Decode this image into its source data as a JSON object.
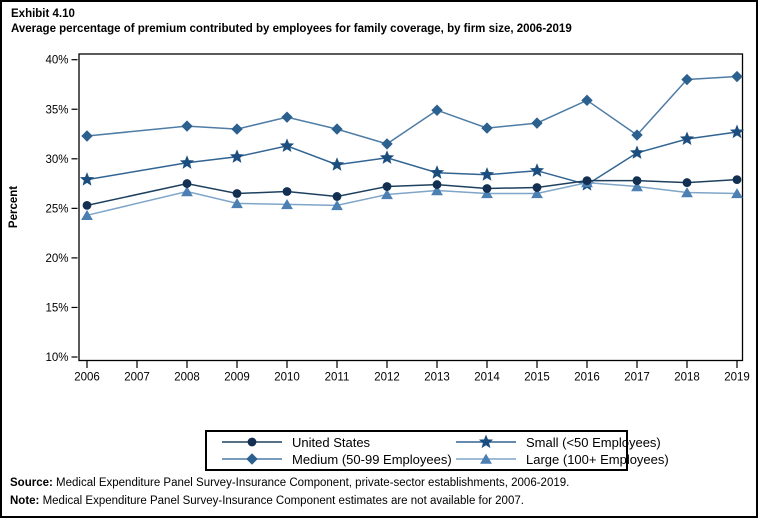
{
  "title": {
    "exhibit": "Exhibit 4.10",
    "text": "Average percentage of premium contributed by employees for family coverage, by firm size, 2006-2019"
  },
  "chart_data": {
    "type": "line",
    "title": "Average percentage of premium contributed by employees for family coverage, by firm size, 2006-2019",
    "ylabel": "Percent",
    "xlabel": "",
    "ylim": [
      8.5,
      40.5
    ],
    "yticks": [
      10,
      15,
      20,
      25,
      30,
      35,
      40
    ],
    "ytick_labels": [
      "10%",
      "15%",
      "20%",
      "25%",
      "30%",
      "35%",
      "40%"
    ],
    "x_ticks": [
      2006,
      2007,
      2008,
      2009,
      2010,
      2011,
      2012,
      2013,
      2014,
      2015,
      2016,
      2017,
      2018,
      2019
    ],
    "categories": [
      2006,
      2008,
      2009,
      2010,
      2011,
      2012,
      2013,
      2014,
      2015,
      2016,
      2017,
      2018,
      2019
    ],
    "note_missing_year": "2007",
    "legend_position": "bottom",
    "grid": false,
    "series": [
      {
        "name": "United States",
        "marker": "circle",
        "color": "#132F52",
        "line_color": "#1E405E",
        "values": [
          25.3,
          27.5,
          26.5,
          26.7,
          26.2,
          27.2,
          27.4,
          27.0,
          27.1,
          27.8,
          27.8,
          27.6,
          27.9
        ]
      },
      {
        "name": "Small (<50 Employees)",
        "marker": "star",
        "color": "#1B4E7F",
        "line_color": "#326492",
        "values": [
          27.9,
          29.6,
          30.2,
          31.3,
          29.4,
          30.1,
          28.6,
          28.4,
          28.8,
          27.4,
          30.6,
          32.0,
          32.7
        ]
      },
      {
        "name": "Medium (50-99 Employees)",
        "marker": "diamond",
        "color": "#2C608F",
        "line_color": "#4E7CA5",
        "values": [
          32.3,
          33.3,
          33.0,
          34.2,
          33.0,
          31.5,
          34.9,
          33.1,
          33.6,
          35.9,
          32.4,
          38.0,
          38.3
        ]
      },
      {
        "name": "Large (100+ Employees)",
        "marker": "triangle",
        "color": "#4C7FB2",
        "line_color": "#7FA5C9",
        "values": [
          24.3,
          26.7,
          25.5,
          25.4,
          25.3,
          26.4,
          26.8,
          26.5,
          26.5,
          27.6,
          27.2,
          26.6,
          26.5
        ]
      }
    ]
  },
  "footer": {
    "source_label": "Source:",
    "source_text": " Medical Expenditure Panel Survey-Insurance Component, private-sector establishments, 2006-2019.",
    "note_label": "Note:",
    "note_text": " Medical Expenditure Panel Survey-Insurance Component estimates are not available for 2007."
  }
}
